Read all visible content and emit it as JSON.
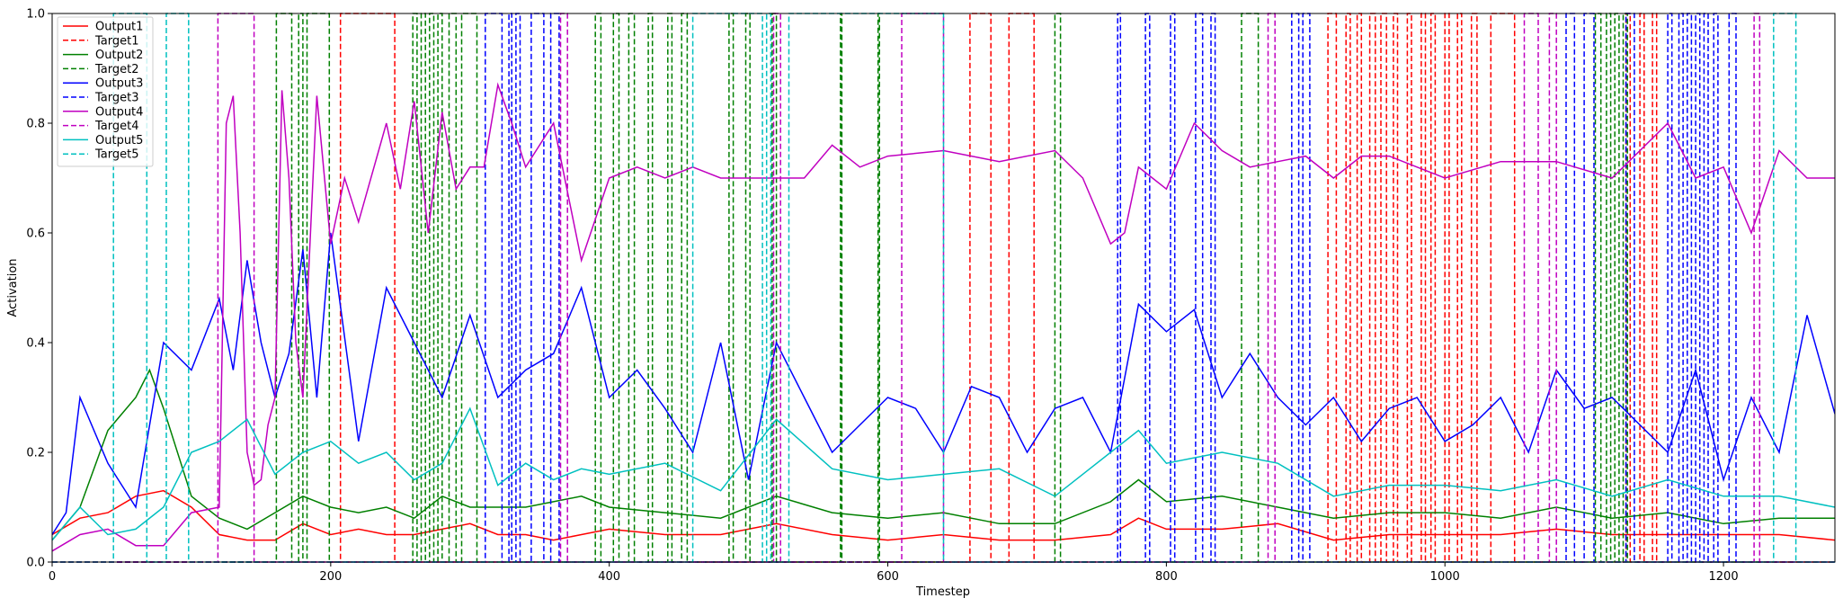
{
  "chart_data": {
    "type": "line",
    "title": "",
    "xlabel": "Timestep",
    "ylabel": "Activation",
    "xlim": [
      0,
      1280
    ],
    "ylim": [
      0,
      1.0
    ],
    "x_ticks": [
      0,
      200,
      400,
      600,
      800,
      1000,
      1200
    ],
    "y_ticks": [
      0.0,
      0.2,
      0.4,
      0.6,
      0.8,
      1.0
    ],
    "legend": [
      "Output1",
      "Target1",
      "Output2",
      "Target2",
      "Output3",
      "Target3",
      "Output4",
      "Target4",
      "Output5",
      "Target5"
    ],
    "legend_placement": "top-left",
    "grid": false,
    "series": [
      {
        "name": "Output1",
        "style": "solid",
        "color": "#ff0000",
        "x": [
          0,
          20,
          40,
          60,
          80,
          100,
          120,
          140,
          160,
          180,
          200,
          220,
          240,
          260,
          280,
          300,
          320,
          340,
          360,
          380,
          400,
          440,
          480,
          520,
          560,
          600,
          640,
          680,
          720,
          760,
          780,
          800,
          840,
          880,
          920,
          960,
          1000,
          1040,
          1080,
          1120,
          1160,
          1200,
          1240,
          1280
        ],
        "y": [
          0.05,
          0.08,
          0.09,
          0.12,
          0.13,
          0.1,
          0.05,
          0.04,
          0.04,
          0.07,
          0.05,
          0.06,
          0.05,
          0.05,
          0.06,
          0.07,
          0.05,
          0.05,
          0.04,
          0.05,
          0.06,
          0.05,
          0.05,
          0.07,
          0.05,
          0.04,
          0.05,
          0.04,
          0.04,
          0.05,
          0.08,
          0.06,
          0.06,
          0.07,
          0.04,
          0.05,
          0.05,
          0.05,
          0.06,
          0.05,
          0.05,
          0.05,
          0.05,
          0.04
        ]
      },
      {
        "name": "Target1",
        "style": "dashed",
        "color": "#ff0000",
        "pulses": [
          [
            207,
            246
          ],
          [
            659,
            674
          ],
          [
            687,
            705
          ],
          [
            916,
            922
          ],
          [
            929,
            932
          ],
          [
            937,
            940
          ],
          [
            946,
            950
          ],
          [
            954,
            958
          ],
          [
            963,
            966
          ],
          [
            973,
            976
          ],
          [
            983,
            986
          ],
          [
            990,
            993
          ],
          [
            1000,
            1003
          ],
          [
            1009,
            1012
          ],
          [
            1019,
            1023
          ],
          [
            1033,
            1050
          ],
          [
            1130,
            1133
          ],
          [
            1140,
            1143
          ],
          [
            1149,
            1152
          ]
        ]
      },
      {
        "name": "Output2",
        "style": "solid",
        "color": "#008000",
        "x": [
          0,
          20,
          40,
          60,
          70,
          80,
          100,
          120,
          140,
          160,
          180,
          200,
          220,
          240,
          260,
          280,
          300,
          320,
          340,
          360,
          380,
          400,
          440,
          480,
          520,
          560,
          600,
          640,
          680,
          720,
          760,
          780,
          800,
          840,
          880,
          920,
          960,
          1000,
          1040,
          1080,
          1120,
          1160,
          1200,
          1240,
          1280
        ],
        "y": [
          0.04,
          0.1,
          0.24,
          0.3,
          0.35,
          0.28,
          0.12,
          0.08,
          0.06,
          0.09,
          0.12,
          0.1,
          0.09,
          0.1,
          0.08,
          0.12,
          0.1,
          0.1,
          0.1,
          0.11,
          0.12,
          0.1,
          0.09,
          0.08,
          0.12,
          0.09,
          0.08,
          0.09,
          0.07,
          0.07,
          0.11,
          0.15,
          0.11,
          0.12,
          0.1,
          0.08,
          0.09,
          0.09,
          0.08,
          0.1,
          0.08,
          0.09,
          0.07,
          0.08,
          0.08
        ]
      },
      {
        "name": "Target2",
        "style": "dashed",
        "color": "#008000",
        "pulses": [
          [
            161,
            172
          ],
          [
            177,
            180
          ],
          [
            183,
            199
          ],
          [
            259,
            262
          ],
          [
            265,
            268
          ],
          [
            271,
            274
          ],
          [
            277,
            280
          ],
          [
            285,
            290
          ],
          [
            294,
            305
          ],
          [
            390,
            394
          ],
          [
            403,
            407
          ],
          [
            414,
            418
          ],
          [
            428,
            431
          ],
          [
            442,
            445
          ],
          [
            452,
            456
          ],
          [
            486,
            489
          ],
          [
            498,
            501
          ],
          [
            517,
            520
          ],
          [
            566,
            567
          ],
          [
            593,
            594
          ],
          [
            720,
            724
          ],
          [
            854,
            866
          ],
          [
            1108,
            1112
          ],
          [
            1116,
            1119
          ],
          [
            1122,
            1125
          ],
          [
            1128,
            1131
          ]
        ]
      },
      {
        "name": "Output3",
        "style": "solid",
        "color": "#0000ff",
        "x": [
          0,
          10,
          20,
          40,
          60,
          80,
          100,
          120,
          130,
          140,
          150,
          160,
          170,
          180,
          190,
          200,
          220,
          240,
          260,
          280,
          300,
          320,
          340,
          360,
          380,
          400,
          420,
          440,
          460,
          480,
          500,
          520,
          540,
          560,
          580,
          600,
          620,
          640,
          660,
          680,
          700,
          720,
          740,
          760,
          780,
          800,
          820,
          840,
          860,
          880,
          900,
          920,
          940,
          960,
          980,
          1000,
          1020,
          1040,
          1060,
          1080,
          1100,
          1120,
          1140,
          1160,
          1180,
          1200,
          1220,
          1240,
          1260,
          1280
        ],
        "y": [
          0.05,
          0.09,
          0.3,
          0.18,
          0.1,
          0.4,
          0.35,
          0.48,
          0.35,
          0.55,
          0.4,
          0.3,
          0.38,
          0.57,
          0.3,
          0.6,
          0.22,
          0.5,
          0.4,
          0.3,
          0.45,
          0.3,
          0.35,
          0.38,
          0.5,
          0.3,
          0.35,
          0.28,
          0.2,
          0.4,
          0.15,
          0.4,
          0.3,
          0.2,
          0.25,
          0.3,
          0.28,
          0.2,
          0.32,
          0.3,
          0.2,
          0.28,
          0.3,
          0.2,
          0.47,
          0.42,
          0.46,
          0.3,
          0.38,
          0.3,
          0.25,
          0.3,
          0.22,
          0.28,
          0.3,
          0.22,
          0.25,
          0.3,
          0.2,
          0.35,
          0.28,
          0.3,
          0.25,
          0.2,
          0.35,
          0.15,
          0.3,
          0.2,
          0.45,
          0.27
        ]
      },
      {
        "name": "Target3",
        "style": "dashed",
        "color": "#0000ff",
        "pulses": [
          [
            311,
            323
          ],
          [
            328,
            330
          ],
          [
            333,
            336
          ],
          [
            344,
            353
          ],
          [
            358,
            364
          ],
          [
            765,
            767
          ],
          [
            785,
            788
          ],
          [
            803,
            806
          ],
          [
            821,
            826
          ],
          [
            832,
            835
          ],
          [
            890,
            895
          ],
          [
            898,
            903
          ],
          [
            1087,
            1093
          ],
          [
            1100,
            1107
          ],
          [
            1130,
            1136
          ],
          [
            1160,
            1163
          ],
          [
            1168,
            1171
          ],
          [
            1174,
            1177
          ],
          [
            1180,
            1183
          ],
          [
            1186,
            1189
          ],
          [
            1193,
            1196
          ],
          [
            1204,
            1209
          ]
        ]
      },
      {
        "name": "Output4",
        "style": "solid",
        "color": "#c000c0",
        "x": [
          0,
          20,
          40,
          60,
          80,
          100,
          120,
          125,
          130,
          135,
          140,
          145,
          150,
          155,
          160,
          165,
          170,
          175,
          180,
          190,
          200,
          210,
          220,
          240,
          250,
          260,
          270,
          280,
          290,
          300,
          310,
          320,
          330,
          340,
          360,
          380,
          400,
          420,
          440,
          460,
          480,
          500,
          520,
          540,
          560,
          580,
          600,
          640,
          680,
          720,
          740,
          760,
          770,
          780,
          800,
          820,
          840,
          860,
          880,
          900,
          920,
          940,
          960,
          980,
          1000,
          1040,
          1080,
          1120,
          1160,
          1180,
          1200,
          1220,
          1240,
          1260,
          1280
        ],
        "y": [
          0.02,
          0.05,
          0.06,
          0.03,
          0.03,
          0.09,
          0.1,
          0.8,
          0.85,
          0.6,
          0.2,
          0.14,
          0.15,
          0.25,
          0.3,
          0.86,
          0.7,
          0.4,
          0.3,
          0.85,
          0.58,
          0.7,
          0.62,
          0.8,
          0.68,
          0.84,
          0.6,
          0.82,
          0.68,
          0.72,
          0.72,
          0.87,
          0.8,
          0.72,
          0.8,
          0.55,
          0.7,
          0.72,
          0.7,
          0.72,
          0.7,
          0.7,
          0.7,
          0.7,
          0.76,
          0.72,
          0.74,
          0.75,
          0.73,
          0.75,
          0.7,
          0.58,
          0.6,
          0.72,
          0.68,
          0.8,
          0.75,
          0.72,
          0.73,
          0.74,
          0.7,
          0.74,
          0.74,
          0.72,
          0.7,
          0.73,
          0.73,
          0.7,
          0.8,
          0.7,
          0.72,
          0.6,
          0.75,
          0.7,
          0.7
        ]
      },
      {
        "name": "Target4",
        "style": "dashed",
        "color": "#c000c0",
        "pulses": [
          [
            119,
            145
          ],
          [
            365,
            370
          ],
          [
            518,
            523
          ],
          [
            610,
            640
          ],
          [
            873,
            878
          ],
          [
            1057,
            1067
          ],
          [
            1075,
            1080
          ],
          [
            1222,
            1226
          ]
        ]
      },
      {
        "name": "Output5",
        "style": "solid",
        "color": "#00c0c0",
        "x": [
          0,
          20,
          40,
          60,
          80,
          100,
          120,
          140,
          160,
          180,
          200,
          220,
          240,
          260,
          280,
          300,
          320,
          340,
          360,
          380,
          400,
          440,
          480,
          520,
          560,
          600,
          640,
          680,
          720,
          760,
          780,
          800,
          840,
          880,
          920,
          960,
          1000,
          1040,
          1080,
          1120,
          1160,
          1200,
          1240,
          1280
        ],
        "y": [
          0.04,
          0.1,
          0.05,
          0.06,
          0.1,
          0.2,
          0.22,
          0.26,
          0.16,
          0.2,
          0.22,
          0.18,
          0.2,
          0.15,
          0.18,
          0.28,
          0.14,
          0.18,
          0.15,
          0.17,
          0.16,
          0.18,
          0.13,
          0.26,
          0.17,
          0.15,
          0.16,
          0.17,
          0.12,
          0.2,
          0.24,
          0.18,
          0.2,
          0.18,
          0.12,
          0.14,
          0.14,
          0.13,
          0.15,
          0.12,
          0.15,
          0.12,
          0.12,
          0.1
        ]
      },
      {
        "name": "Target5",
        "style": "dashed",
        "color": "#00c0c0",
        "pulses": [
          [
            44,
            68
          ],
          [
            82,
            98
          ],
          [
            460,
            510
          ],
          [
            513,
            516
          ],
          [
            529,
            640
          ],
          [
            1236,
            1252
          ]
        ]
      }
    ]
  }
}
